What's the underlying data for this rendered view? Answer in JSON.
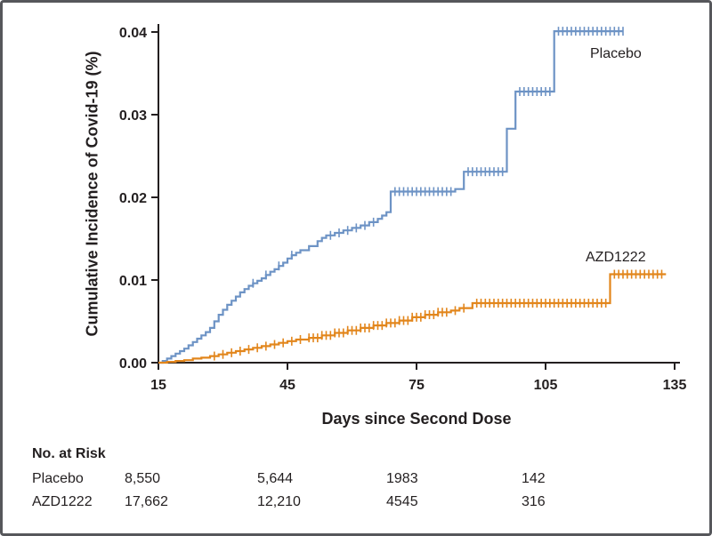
{
  "risk_table": {
    "title": "No. at Risk",
    "rows": [
      {
        "label": "Placebo",
        "values": [
          "8,550",
          "5,644",
          "1983",
          "142"
        ]
      },
      {
        "label": "AZD1222",
        "values": [
          "17,662",
          "12,210",
          "4545",
          "316"
        ]
      }
    ]
  },
  "chart_data": {
    "type": "line",
    "subtype": "kaplan-meier-step",
    "title": "",
    "xlabel": "Days since Second Dose",
    "ylabel": "Cumulative Incidence of Covid-19 (%)",
    "xlim": [
      15,
      135
    ],
    "ylim": [
      0,
      0.04
    ],
    "x_ticks": [
      15,
      45,
      75,
      105,
      135
    ],
    "y_ticks": [
      0,
      0.01,
      0.02,
      0.03,
      0.04
    ],
    "grid": false,
    "legend_position": "end-of-line-labels",
    "axis_color": "#231f20",
    "series": [
      {
        "name": "Placebo",
        "color": "#6d93c5",
        "points": [
          [
            15,
            0
          ],
          [
            16,
            0.0002
          ],
          [
            17,
            0.0005
          ],
          [
            18,
            0.0008
          ],
          [
            19,
            0.0011
          ],
          [
            20,
            0.0014
          ],
          [
            21,
            0.0017
          ],
          [
            22,
            0.0021
          ],
          [
            23,
            0.0025
          ],
          [
            24,
            0.0029
          ],
          [
            25,
            0.0033
          ],
          [
            26,
            0.0037
          ],
          [
            27,
            0.0042
          ],
          [
            28,
            0.005
          ],
          [
            29,
            0.0058
          ],
          [
            30,
            0.0064
          ],
          [
            31,
            0.007
          ],
          [
            32,
            0.0075
          ],
          [
            33,
            0.008
          ],
          [
            34,
            0.0085
          ],
          [
            35,
            0.0089
          ],
          [
            36,
            0.0093
          ],
          [
            37,
            0.0096
          ],
          [
            38,
            0.0099
          ],
          [
            39,
            0.0102
          ],
          [
            40,
            0.0106
          ],
          [
            41,
            0.011
          ],
          [
            42,
            0.0113
          ],
          [
            43,
            0.0117
          ],
          [
            44,
            0.0121
          ],
          [
            45,
            0.0126
          ],
          [
            46,
            0.013
          ],
          [
            47,
            0.0133
          ],
          [
            48,
            0.0136
          ],
          [
            50,
            0.0141
          ],
          [
            52,
            0.0147
          ],
          [
            53,
            0.0151
          ],
          [
            54,
            0.0154
          ],
          [
            56,
            0.0157
          ],
          [
            58,
            0.016
          ],
          [
            60,
            0.0163
          ],
          [
            62,
            0.0166
          ],
          [
            64,
            0.017
          ],
          [
            66,
            0.0174
          ],
          [
            67,
            0.0178
          ],
          [
            68,
            0.0182
          ],
          [
            69,
            0.0207
          ],
          [
            84,
            0.021
          ],
          [
            86,
            0.0231
          ],
          [
            96,
            0.0283
          ],
          [
            98,
            0.0328
          ],
          [
            107,
            0.0401
          ],
          [
            123,
            0.0401
          ]
        ],
        "censor_days": [
          37,
          40,
          43,
          46,
          55,
          57,
          59,
          61,
          63,
          65,
          70,
          71,
          72,
          73,
          74,
          75,
          76,
          77,
          78,
          79,
          80,
          81,
          82,
          83,
          87,
          88,
          89,
          90,
          91,
          92,
          93,
          94,
          95,
          99,
          100,
          101,
          102,
          103,
          104,
          105,
          106,
          108,
          109,
          110,
          111,
          112,
          113,
          114,
          115,
          116,
          117,
          118,
          119,
          120,
          121,
          122,
          123
        ]
      },
      {
        "name": "AZD1222",
        "color": "#e2861c",
        "points": [
          [
            15,
            0
          ],
          [
            17,
            0.0001
          ],
          [
            19,
            0.0002
          ],
          [
            21,
            0.0003
          ],
          [
            23,
            0.0005
          ],
          [
            25,
            0.0006
          ],
          [
            27,
            0.0008
          ],
          [
            29,
            0.001
          ],
          [
            31,
            0.0012
          ],
          [
            33,
            0.0014
          ],
          [
            35,
            0.0016
          ],
          [
            37,
            0.0018
          ],
          [
            39,
            0.002
          ],
          [
            41,
            0.0022
          ],
          [
            43,
            0.0024
          ],
          [
            45,
            0.0026
          ],
          [
            47,
            0.0028
          ],
          [
            50,
            0.003
          ],
          [
            53,
            0.0033
          ],
          [
            56,
            0.0036
          ],
          [
            59,
            0.0039
          ],
          [
            62,
            0.0042
          ],
          [
            65,
            0.0045
          ],
          [
            68,
            0.0048
          ],
          [
            71,
            0.0051
          ],
          [
            74,
            0.0055
          ],
          [
            77,
            0.0058
          ],
          [
            80,
            0.0061
          ],
          [
            83,
            0.0063
          ],
          [
            85,
            0.0066
          ],
          [
            88,
            0.0072
          ],
          [
            120,
            0.0107
          ],
          [
            133,
            0.0107
          ]
        ],
        "censor_days": [
          28,
          30,
          32,
          34,
          36,
          38,
          40,
          42,
          44,
          46,
          48,
          50,
          51,
          52,
          53,
          54,
          55,
          56,
          57,
          58,
          59,
          60,
          61,
          62,
          63,
          64,
          65,
          66,
          67,
          68,
          69,
          70,
          71,
          72,
          73,
          74,
          75,
          76,
          77,
          78,
          79,
          80,
          81,
          82,
          84,
          86,
          89,
          90,
          91,
          92,
          93,
          94,
          95,
          96,
          97,
          98,
          99,
          100,
          101,
          102,
          103,
          104,
          105,
          106,
          107,
          108,
          109,
          110,
          111,
          112,
          113,
          114,
          115,
          116,
          117,
          118,
          119,
          121,
          122,
          123,
          124,
          125,
          126,
          127,
          128,
          129,
          130,
          131,
          132
        ]
      }
    ]
  }
}
